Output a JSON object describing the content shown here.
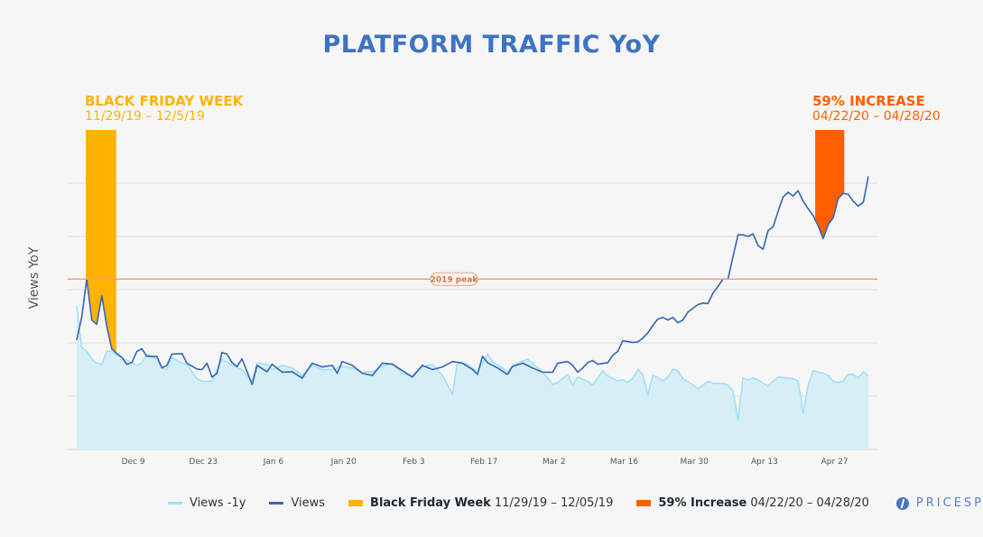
{
  "chart_data": {
    "type": "line",
    "title": "PLATFORM TRAFFIC YoY",
    "xlabel": "",
    "ylabel": "Views YoY",
    "x_unit": "days since Nov 27, 2019",
    "y_unit": "relative index (gridline step = 100)",
    "ylim": [
      0,
      600
    ],
    "grid": true,
    "gridlines": [
      100,
      200,
      300,
      400,
      500
    ],
    "x_ticks": [
      {
        "day": 12,
        "label": "Dec 9"
      },
      {
        "day": 26,
        "label": "Dec 23"
      },
      {
        "day": 40,
        "label": "Jan 6"
      },
      {
        "day": 54,
        "label": "Jan 20"
      },
      {
        "day": 68,
        "label": "Feb 3"
      },
      {
        "day": 82,
        "label": "Feb 17"
      },
      {
        "day": 96,
        "label": "Mar 2"
      },
      {
        "day": 110,
        "label": "Mar 16"
      },
      {
        "day": 124,
        "label": "Mar 30"
      },
      {
        "day": 138,
        "label": "Apr 13"
      },
      {
        "day": 152,
        "label": "Apr 27"
      }
    ],
    "reference_line": {
      "label": "2019 peak",
      "value": 320,
      "color": "#f0a080"
    },
    "series": [
      {
        "name": "Views -1y",
        "color": "#9fe0f5",
        "fill": "#d6eef6",
        "points": [
          [
            0,
            269
          ],
          [
            1,
            192
          ],
          [
            2,
            184
          ],
          [
            3,
            170
          ],
          [
            4,
            162
          ],
          [
            5,
            160
          ],
          [
            6,
            185
          ],
          [
            7,
            184
          ],
          [
            9,
            172
          ],
          [
            11,
            163
          ],
          [
            12,
            158
          ],
          [
            13,
            163
          ],
          [
            14,
            179
          ],
          [
            16,
            170
          ],
          [
            17,
            153
          ],
          [
            18,
            150
          ],
          [
            19,
            173
          ],
          [
            21,
            162
          ],
          [
            22,
            160
          ],
          [
            24,
            133
          ],
          [
            25,
            128
          ],
          [
            27,
            128
          ],
          [
            28,
            150
          ],
          [
            29,
            170
          ],
          [
            31,
            158
          ],
          [
            33,
            150
          ],
          [
            35,
            128
          ],
          [
            36,
            162
          ],
          [
            38,
            160
          ],
          [
            39,
            150
          ],
          [
            41,
            158
          ],
          [
            43,
            153
          ],
          [
            45,
            139
          ],
          [
            47,
            158
          ],
          [
            49,
            150
          ],
          [
            51,
            150
          ],
          [
            53,
            156
          ],
          [
            55,
            153
          ],
          [
            57,
            145
          ],
          [
            59,
            146
          ],
          [
            61,
            156
          ],
          [
            63,
            162
          ],
          [
            65,
            143
          ],
          [
            67,
            139
          ],
          [
            69,
            155
          ],
          [
            71,
            160
          ],
          [
            73,
            139
          ],
          [
            75,
            104
          ],
          [
            76,
            165
          ],
          [
            78,
            160
          ],
          [
            80,
            146
          ],
          [
            82,
            179
          ],
          [
            83,
            165
          ],
          [
            85,
            153
          ],
          [
            86,
            146
          ],
          [
            87,
            158
          ],
          [
            90,
            170
          ],
          [
            91,
            162
          ],
          [
            93,
            146
          ],
          [
            95,
            122
          ],
          [
            96,
            126
          ],
          [
            98,
            141
          ],
          [
            99,
            121
          ],
          [
            100,
            136
          ],
          [
            102,
            128
          ],
          [
            103,
            121
          ],
          [
            105,
            148
          ],
          [
            106,
            138
          ],
          [
            108,
            129
          ],
          [
            109,
            131
          ],
          [
            110,
            126
          ],
          [
            111,
            134
          ],
          [
            112,
            150
          ],
          [
            113,
            141
          ],
          [
            114,
            102
          ],
          [
            115,
            139
          ],
          [
            116,
            136
          ],
          [
            117,
            129
          ],
          [
            118,
            136
          ],
          [
            119,
            151
          ],
          [
            120,
            148
          ],
          [
            121,
            133
          ],
          [
            123,
            121
          ],
          [
            124,
            114
          ],
          [
            126,
            128
          ],
          [
            127,
            124
          ],
          [
            129,
            124
          ],
          [
            130,
            121
          ],
          [
            131,
            110
          ],
          [
            132,
            56
          ],
          [
            133,
            134
          ],
          [
            134,
            131
          ],
          [
            135,
            134
          ],
          [
            136,
            131
          ],
          [
            138,
            119
          ],
          [
            139,
            128
          ],
          [
            140,
            136
          ],
          [
            143,
            133
          ],
          [
            144,
            129
          ],
          [
            145,
            68
          ],
          [
            146,
            121
          ],
          [
            147,
            148
          ],
          [
            149,
            143
          ],
          [
            150,
            139
          ],
          [
            151,
            128
          ],
          [
            152,
            126
          ],
          [
            153,
            129
          ],
          [
            154,
            141
          ],
          [
            155,
            141
          ],
          [
            156,
            134
          ],
          [
            157,
            146
          ],
          [
            158,
            139
          ]
        ]
      },
      {
        "name": "Views",
        "color": "#3566b5",
        "points": [
          [
            0,
            206
          ],
          [
            1,
            248
          ],
          [
            2,
            320
          ],
          [
            3,
            243
          ],
          [
            4,
            235
          ],
          [
            5,
            289
          ],
          [
            6,
            231
          ],
          [
            7,
            189
          ],
          [
            8,
            180
          ],
          [
            9,
            173
          ],
          [
            10,
            160
          ],
          [
            11,
            163
          ],
          [
            12,
            184
          ],
          [
            13,
            189
          ],
          [
            14,
            175
          ],
          [
            16,
            175
          ],
          [
            17,
            153
          ],
          [
            18,
            158
          ],
          [
            19,
            179
          ],
          [
            21,
            180
          ],
          [
            22,
            162
          ],
          [
            24,
            151
          ],
          [
            25,
            150
          ],
          [
            26,
            162
          ],
          [
            27,
            136
          ],
          [
            28,
            143
          ],
          [
            29,
            182
          ],
          [
            30,
            179
          ],
          [
            31,
            163
          ],
          [
            32,
            156
          ],
          [
            33,
            170
          ],
          [
            35,
            122
          ],
          [
            36,
            158
          ],
          [
            38,
            146
          ],
          [
            39,
            160
          ],
          [
            41,
            145
          ],
          [
            43,
            146
          ],
          [
            45,
            134
          ],
          [
            47,
            162
          ],
          [
            49,
            155
          ],
          [
            51,
            158
          ],
          [
            52,
            143
          ],
          [
            53,
            165
          ],
          [
            55,
            158
          ],
          [
            57,
            143
          ],
          [
            59,
            139
          ],
          [
            61,
            162
          ],
          [
            63,
            160
          ],
          [
            65,
            148
          ],
          [
            67,
            136
          ],
          [
            69,
            158
          ],
          [
            71,
            150
          ],
          [
            73,
            155
          ],
          [
            75,
            165
          ],
          [
            77,
            162
          ],
          [
            79,
            150
          ],
          [
            80,
            141
          ],
          [
            81,
            175
          ],
          [
            82,
            163
          ],
          [
            84,
            153
          ],
          [
            86,
            141
          ],
          [
            87,
            156
          ],
          [
            89,
            162
          ],
          [
            91,
            153
          ],
          [
            93,
            145
          ],
          [
            95,
            145
          ],
          [
            96,
            162
          ],
          [
            98,
            165
          ],
          [
            99,
            158
          ],
          [
            100,
            145
          ],
          [
            101,
            153
          ],
          [
            102,
            163
          ],
          [
            103,
            167
          ],
          [
            104,
            160
          ],
          [
            106,
            163
          ],
          [
            107,
            177
          ],
          [
            108,
            184
          ],
          [
            109,
            204
          ],
          [
            111,
            201
          ],
          [
            112,
            202
          ],
          [
            113,
            209
          ],
          [
            114,
            219
          ],
          [
            115,
            233
          ],
          [
            116,
            245
          ],
          [
            117,
            248
          ],
          [
            118,
            243
          ],
          [
            119,
            248
          ],
          [
            120,
            238
          ],
          [
            121,
            243
          ],
          [
            122,
            258
          ],
          [
            123,
            265
          ],
          [
            124,
            272
          ],
          [
            125,
            275
          ],
          [
            126,
            274
          ],
          [
            127,
            294
          ],
          [
            128,
            306
          ],
          [
            129,
            320
          ],
          [
            130,
            320
          ],
          [
            131,
            362
          ],
          [
            132,
            403
          ],
          [
            133,
            403
          ],
          [
            134,
            400
          ],
          [
            135,
            405
          ],
          [
            136,
            383
          ],
          [
            137,
            376
          ],
          [
            138,
            411
          ],
          [
            139,
            418
          ],
          [
            140,
            447
          ],
          [
            141,
            474
          ],
          [
            142,
            483
          ],
          [
            143,
            476
          ],
          [
            144,
            486
          ],
          [
            145,
            466
          ],
          [
            146,
            452
          ],
          [
            147,
            439
          ],
          [
            148,
            420
          ],
          [
            149,
            396
          ],
          [
            150,
            422
          ],
          [
            151,
            435
          ],
          [
            152,
            471
          ],
          [
            153,
            481
          ],
          [
            154,
            479
          ],
          [
            155,
            466
          ],
          [
            156,
            457
          ],
          [
            157,
            464
          ],
          [
            158,
            512
          ]
        ]
      }
    ],
    "highlights": [
      {
        "name": "Black Friday Week",
        "title": "BLACK FRIDAY WEEK",
        "range_label": "11/29/19 – 12/5/19",
        "legend_range": "11/29/19 – 12/05/19",
        "day_start": 1.8,
        "day_end": 7.9,
        "color": "#ffb300"
      },
      {
        "name": "59% Increase",
        "title": "59% INCREASE",
        "range_label": "04/22/20 – 04/28/20",
        "legend_range": "04/22/20 – 04/28/20",
        "day_start": 147.4,
        "day_end": 153.2,
        "color": "#ff5f00"
      }
    ]
  },
  "legend": {
    "views_prev": "Views -1y",
    "views": "Views",
    "bf_name": "Black Friday Week",
    "bf_range": "11/29/19 – 12/05/19",
    "inc_name": "59% Increase",
    "inc_range": "04/22/20 – 04/28/20"
  },
  "brand": {
    "logo_text": "PRICESPIDER"
  }
}
